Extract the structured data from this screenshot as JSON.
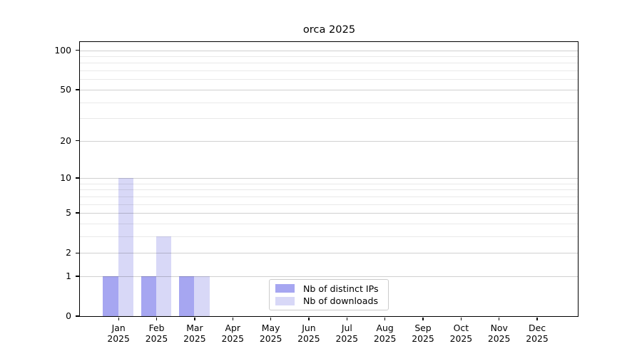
{
  "title": "orca 2025",
  "colors": {
    "bar_distinct_ips": "#a6a6f1",
    "bar_downloads": "#d8d8f7",
    "grid_major": "#d0d0d0",
    "grid_minor": "#e9e9e9",
    "axis": "#000000",
    "legend_border": "#cbcbcb",
    "background": "#ffffff"
  },
  "chart_data": {
    "type": "bar",
    "title": "orca 2025",
    "xlabel": "",
    "ylabel": "",
    "year": "2025",
    "categories": [
      "Jan",
      "Feb",
      "Mar",
      "Apr",
      "May",
      "Jun",
      "Jul",
      "Aug",
      "Sep",
      "Oct",
      "Nov",
      "Dec"
    ],
    "series": [
      {
        "name": "Nb of distinct IPs",
        "color": "#a6a6f1",
        "values": [
          1,
          1,
          1,
          0,
          0,
          0,
          0,
          0,
          0,
          0,
          0,
          0
        ]
      },
      {
        "name": "Nb of downloads",
        "color": "#d8d8f7",
        "values": [
          10,
          3,
          1,
          0,
          0,
          0,
          0,
          0,
          0,
          0,
          0,
          0
        ]
      }
    ],
    "y_scale": "log1p",
    "ylim": [
      0,
      116
    ],
    "y_ticks": [
      0,
      1,
      2,
      5,
      10,
      20,
      50,
      100
    ],
    "y_minor_gridlines": [
      3,
      4,
      6,
      7,
      8,
      9,
      30,
      40,
      60,
      70,
      80,
      90
    ],
    "grid": "on",
    "legend_position": "lower center inside"
  }
}
